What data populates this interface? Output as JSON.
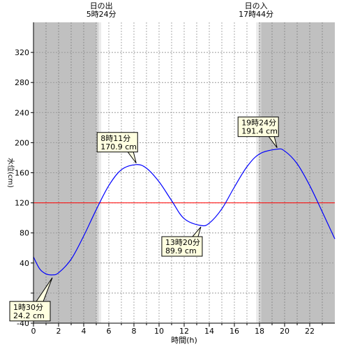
{
  "chart_data": {
    "type": "line",
    "xlabel": "時間(h)",
    "ylabel": "水位(cm)",
    "xlim": [
      0,
      24
    ],
    "ylim": [
      -40,
      360
    ],
    "xticks": [
      0,
      2,
      4,
      6,
      8,
      10,
      12,
      14,
      16,
      18,
      20,
      22
    ],
    "yticks": [
      -40,
      0,
      40,
      80,
      120,
      160,
      200,
      240,
      280,
      320
    ],
    "ytick_labels": [
      "-40",
      "",
      "40",
      "80",
      "120",
      "160",
      "200",
      "240",
      "280",
      "320"
    ],
    "sunrise": {
      "title": "日の出",
      "time_label": "5時24分",
      "hour": 5.4
    },
    "sunset": {
      "title": "日の入",
      "time_label": "17時44分",
      "hour": 17.73
    },
    "reference_line": {
      "value": 120,
      "color": "#ff0000"
    },
    "series": [
      {
        "color": "#0000ff",
        "x": [
          0,
          0.5,
          1,
          1.5,
          2,
          3,
          4,
          5,
          6,
          7,
          8.18,
          9,
          10,
          11,
          12,
          13.33,
          14,
          15,
          16,
          17,
          18,
          19.4,
          20,
          21,
          22,
          23,
          24
        ],
        "y": [
          48,
          32,
          25.5,
          24.2,
          27,
          45,
          76,
          111,
          143,
          164,
          170.9,
          166,
          148,
          123,
          99,
          89.9,
          93,
          112,
          141,
          168,
          185,
          191.4,
          189,
          172,
          143,
          108,
          72
        ]
      }
    ],
    "annotations": [
      {
        "time": "1時30分",
        "value": "24.2 cm",
        "x": 1.5,
        "y": 24.2
      },
      {
        "time": "8時11分",
        "value": "170.9 cm",
        "x": 8.18,
        "y": 170.9
      },
      {
        "time": "13時20分",
        "value": "89.9 cm",
        "x": 13.33,
        "y": 89.9
      },
      {
        "time": "19時24分",
        "value": "191.4 cm",
        "x": 19.4,
        "y": 191.4
      }
    ],
    "colors": {
      "night": "#c0c0c0",
      "twilight_dark": "#d3d3d3",
      "twilight_light": "#ebebeb",
      "day": "#ffffff",
      "annotation_bg": "#ffffe0"
    }
  }
}
